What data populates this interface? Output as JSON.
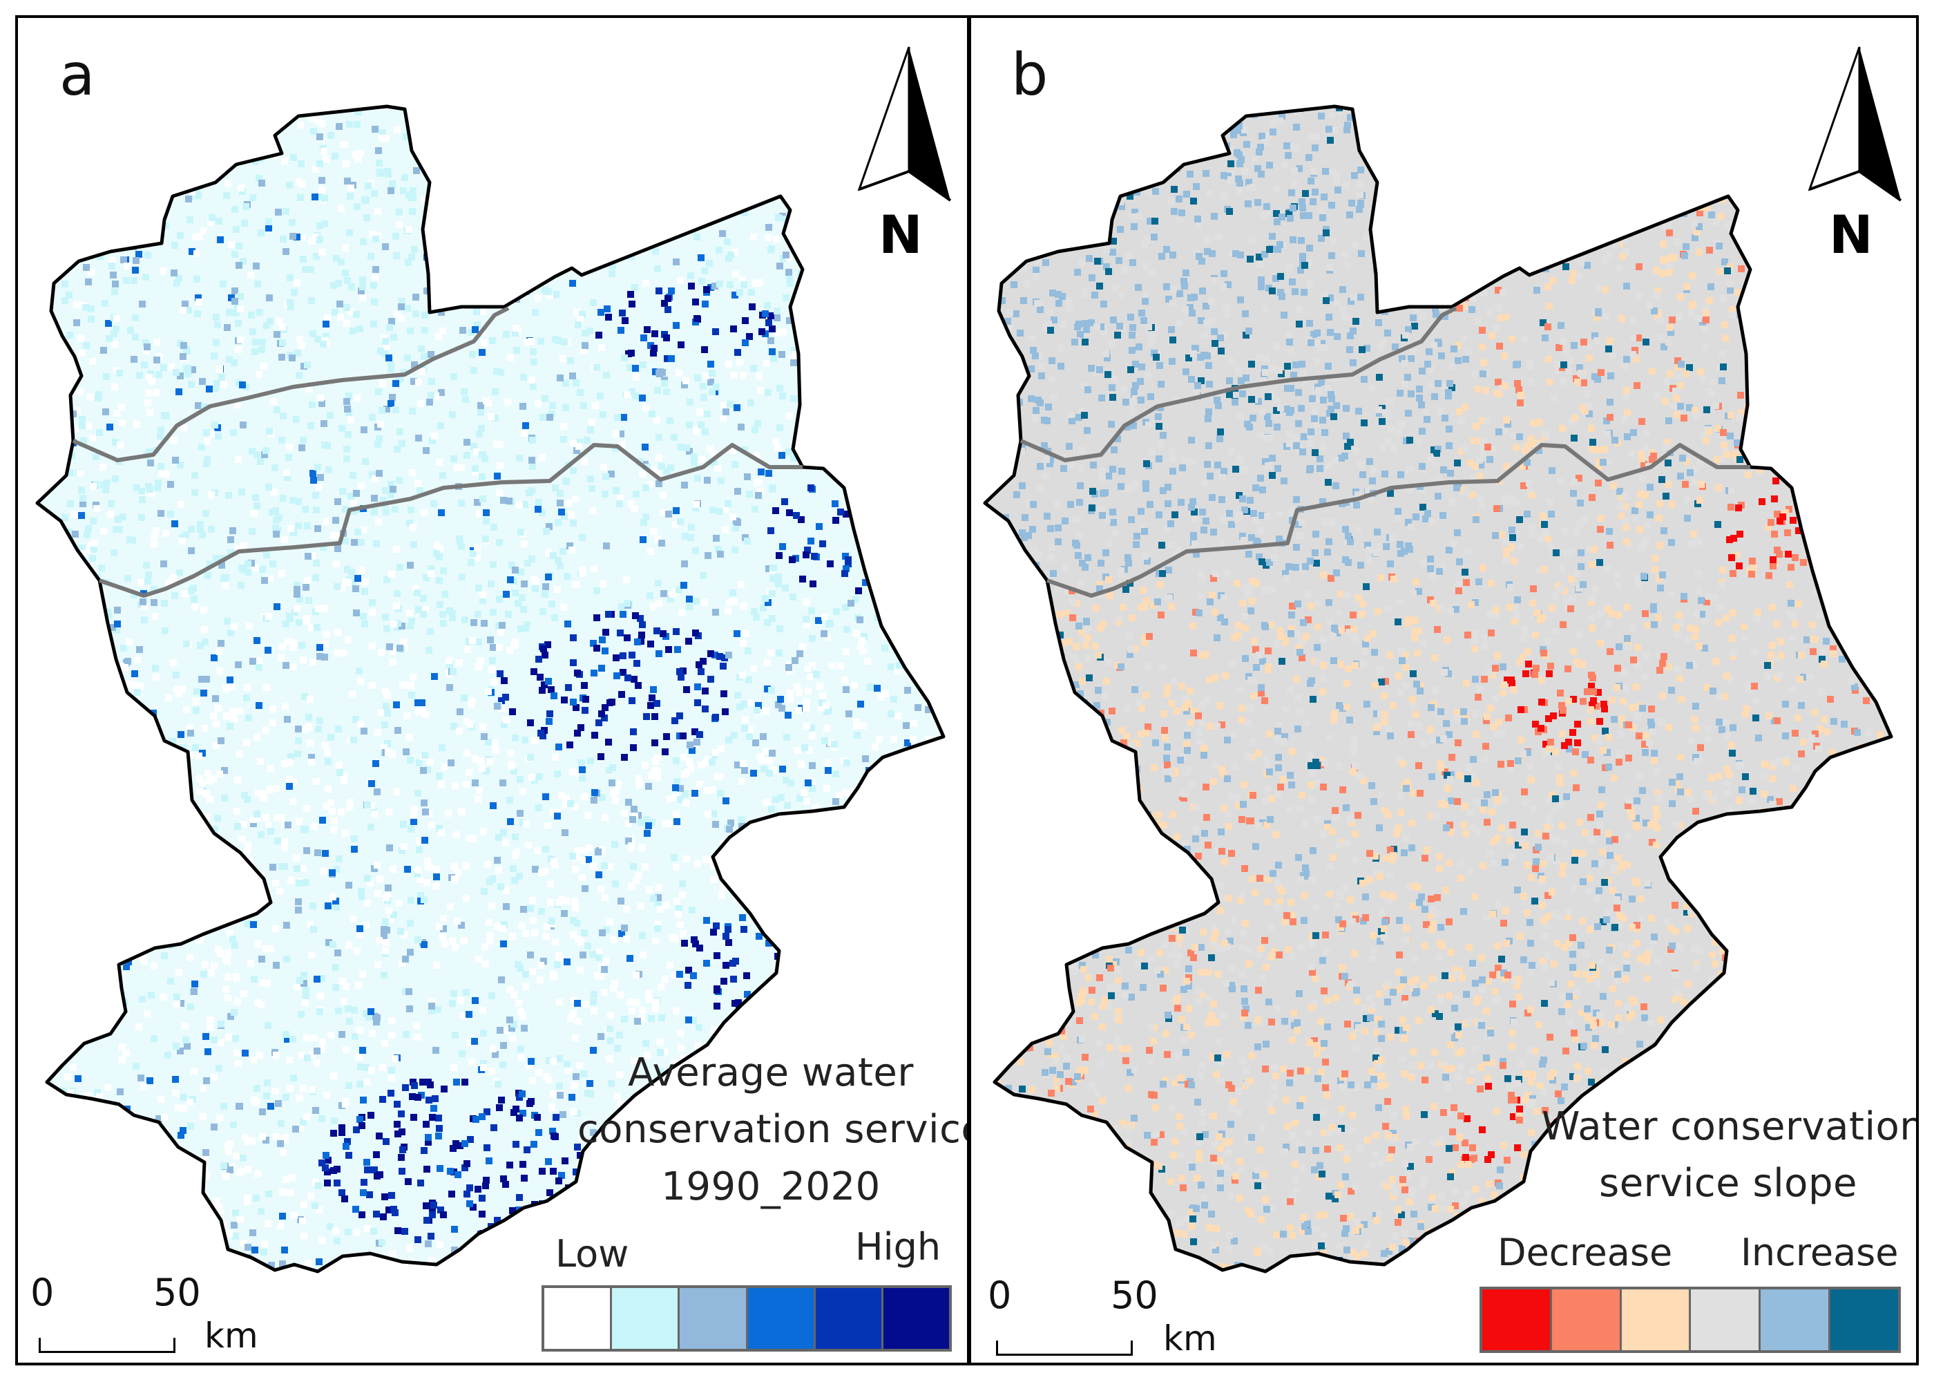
{
  "figure": {
    "panels": [
      {
        "letter": "a",
        "north": "N",
        "title_lines": [
          "Average water",
          "conservation service",
          "1990_2020"
        ],
        "legend": {
          "low": "Low",
          "high": "High",
          "colors": [
            "#ffffff",
            "#c8f5fa",
            "#92b9dc",
            "#0a6cd8",
            "#0434b4",
            "#020c8c"
          ]
        },
        "scale": {
          "zero": "0",
          "max": "50",
          "unit": "km"
        }
      },
      {
        "letter": "b",
        "north": "N",
        "title_lines": [
          "Water conservation",
          "service slope"
        ],
        "legend": {
          "low": "Decrease",
          "high": "Increase",
          "colors": [
            "#f40a0a",
            "#fc8266",
            "#fddcb6",
            "#e0e0e0",
            "#94bcdc",
            "#06688e"
          ]
        },
        "scale": {
          "zero": "0",
          "max": "50",
          "unit": "km"
        }
      }
    ]
  }
}
